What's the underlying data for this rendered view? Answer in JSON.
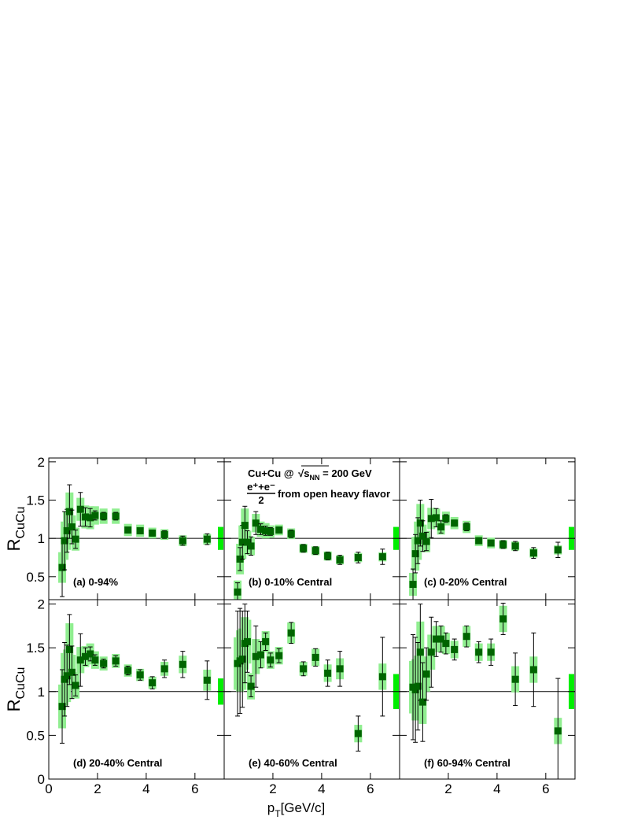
{
  "chart_data": [
    {
      "type": "scatter",
      "label": "(a) 0-94%",
      "y_label": {
        "main": "R",
        "sub": "CuCu"
      },
      "x": [
        0.55,
        0.65,
        0.75,
        0.85,
        0.95,
        1.1,
        1.3,
        1.5,
        1.7,
        1.9,
        2.25,
        2.75,
        3.25,
        3.75,
        4.25,
        4.75,
        5.5,
        6.5
      ],
      "values": [
        0.62,
        0.97,
        1.1,
        1.35,
        1.15,
        0.99,
        1.38,
        1.28,
        1.27,
        1.3,
        1.29,
        1.29,
        1.11,
        1.1,
        1.07,
        1.05,
        0.97,
        0.99
      ],
      "errors": [
        0.38,
        0.38,
        0.28,
        0.35,
        0.22,
        0.12,
        0.22,
        0.12,
        0.12,
        0.06,
        0.05,
        0.05,
        0.04,
        0.04,
        0.04,
        0.05,
        0.06,
        0.07
      ],
      "sys_errors": [
        0.2,
        0.25,
        0.25,
        0.25,
        0.15,
        0.15,
        0.15,
        0.15,
        0.15,
        0.12,
        0.1,
        0.1,
        0.08,
        0.08,
        0.07,
        0.07,
        0.07,
        0.07
      ],
      "norm_error": 0.15,
      "reference_line": 1,
      "color": "#006400",
      "sys_color": "#90ee90",
      "norm_color": "#00ee00",
      "xlim": [
        0,
        7.2
      ],
      "ylim": [
        0.2,
        2.05
      ],
      "xticks": [
        0,
        2,
        4,
        6
      ],
      "yticks": [
        0.5,
        1,
        1.5,
        2
      ]
    },
    {
      "type": "scatter",
      "label": "(b) 0-10% Central",
      "annotation": {
        "system": "Cu+Cu @ ",
        "sqrt": "s",
        "sqrt_sub": "NN",
        "energy": " = 200 GeV",
        "numerator": "e⁺+e⁻",
        "denominator": "2",
        "source": "from open heavy flavor"
      },
      "x": [
        0.55,
        0.65,
        0.75,
        0.85,
        0.95,
        1.1,
        1.3,
        1.5,
        1.7,
        1.9,
        2.25,
        2.75,
        3.25,
        3.75,
        4.25,
        4.75,
        5.5,
        6.5
      ],
      "values": [
        0.3,
        0.73,
        0.95,
        1.17,
        0.95,
        0.9,
        1.2,
        1.12,
        1.1,
        1.09,
        1.11,
        1.06,
        0.87,
        0.84,
        0.77,
        0.72,
        0.75,
        0.76
      ],
      "errors": [
        0.12,
        0.15,
        0.22,
        0.25,
        0.15,
        0.12,
        0.15,
        0.07,
        0.06,
        0.05,
        0.04,
        0.05,
        0.05,
        0.05,
        0.05,
        0.06,
        0.07,
        0.1
      ],
      "sys_errors": [
        0.15,
        0.2,
        0.22,
        0.22,
        0.15,
        0.12,
        0.12,
        0.1,
        0.1,
        0.08,
        0.07,
        0.07,
        0.06,
        0.06,
        0.06,
        0.06,
        0.06,
        0.06
      ],
      "norm_error": 0.15,
      "reference_line": 1,
      "color": "#006400",
      "sys_color": "#90ee90",
      "norm_color": "#00ee00",
      "xlim": [
        0,
        7.2
      ],
      "ylim": [
        0.2,
        2.05
      ],
      "xticks": [
        0,
        2,
        4,
        6
      ],
      "yticks": [
        0.5,
        1,
        1.5,
        2
      ]
    },
    {
      "type": "scatter",
      "label": "(c) 0-20% Central",
      "x": [
        0.55,
        0.65,
        0.75,
        0.85,
        0.95,
        1.1,
        1.3,
        1.5,
        1.7,
        1.9,
        2.25,
        2.75,
        3.25,
        3.75,
        4.25,
        4.75,
        5.5,
        6.5
      ],
      "values": [
        0.4,
        0.8,
        0.97,
        1.2,
        1.03,
        0.96,
        1.26,
        1.27,
        1.15,
        1.26,
        1.2,
        1.15,
        0.97,
        0.94,
        0.92,
        0.9,
        0.81,
        0.85
      ],
      "errors": [
        0.2,
        0.25,
        0.3,
        0.3,
        0.2,
        0.12,
        0.25,
        0.12,
        0.08,
        0.05,
        0.04,
        0.05,
        0.04,
        0.04,
        0.05,
        0.06,
        0.07,
        0.1
      ],
      "sys_errors": [
        0.15,
        0.22,
        0.25,
        0.25,
        0.15,
        0.14,
        0.14,
        0.12,
        0.1,
        0.09,
        0.08,
        0.08,
        0.07,
        0.07,
        0.06,
        0.06,
        0.06,
        0.06
      ],
      "norm_error": 0.15,
      "reference_line": 1,
      "color": "#006400",
      "sys_color": "#90ee90",
      "norm_color": "#00ee00",
      "xlim": [
        0,
        7.2
      ],
      "ylim": [
        0.2,
        2.05
      ],
      "xticks": [
        0,
        2,
        4,
        6
      ],
      "yticks": [
        0.5,
        1,
        1.5,
        2
      ]
    },
    {
      "type": "scatter",
      "label": "(d) 20-40% Central",
      "y_label": {
        "main": "R",
        "sub": "CuCu"
      },
      "x": [
        0.55,
        0.65,
        0.75,
        0.85,
        0.95,
        1.1,
        1.3,
        1.5,
        1.7,
        1.9,
        2.25,
        2.75,
        3.25,
        3.75,
        4.25,
        4.75,
        5.5,
        6.5
      ],
      "values": [
        0.83,
        1.14,
        1.18,
        1.48,
        1.22,
        1.07,
        1.36,
        1.4,
        1.43,
        1.36,
        1.32,
        1.35,
        1.24,
        1.19,
        1.1,
        1.26,
        1.31,
        1.13
      ],
      "errors": [
        0.42,
        0.42,
        0.35,
        0.4,
        0.3,
        0.12,
        0.3,
        0.1,
        0.08,
        0.06,
        0.05,
        0.06,
        0.05,
        0.06,
        0.07,
        0.1,
        0.15,
        0.22
      ],
      "sys_errors": [
        0.25,
        0.3,
        0.3,
        0.3,
        0.2,
        0.15,
        0.15,
        0.12,
        0.12,
        0.1,
        0.08,
        0.08,
        0.07,
        0.07,
        0.07,
        0.08,
        0.1,
        0.12
      ],
      "norm_error": 0.15,
      "reference_line": 1,
      "color": "#006400",
      "sys_color": "#90ee90",
      "norm_color": "#00ee00",
      "xlim": [
        0,
        7.2
      ],
      "ylim": [
        0,
        2.05
      ],
      "xticks": [
        0,
        2,
        4,
        6
      ],
      "yticks": [
        0,
        0.5,
        1,
        1.5,
        2
      ]
    },
    {
      "type": "scatter",
      "label": "(e) 40-60% Central",
      "x_label": {
        "main": "p",
        "sub": "T",
        "rest": "[GeV/c]"
      },
      "x": [
        0.55,
        0.65,
        0.75,
        0.85,
        0.95,
        1.1,
        1.3,
        1.5,
        1.7,
        1.9,
        2.25,
        2.75,
        3.25,
        3.75,
        4.25,
        4.75,
        5.5,
        6.5
      ],
      "values": [
        1.32,
        1.35,
        1.37,
        1.55,
        1.57,
        1.06,
        1.4,
        1.42,
        1.57,
        1.36,
        1.41,
        1.67,
        1.26,
        1.39,
        1.21,
        1.26,
        0.52,
        1.17
      ],
      "errors": [
        0.6,
        0.6,
        0.55,
        0.45,
        0.35,
        0.12,
        0.35,
        0.15,
        0.1,
        0.08,
        0.08,
        0.12,
        0.08,
        0.1,
        0.15,
        0.2,
        0.2,
        0.45
      ],
      "sys_errors": [
        0.3,
        0.35,
        0.35,
        0.3,
        0.25,
        0.15,
        0.2,
        0.15,
        0.12,
        0.1,
        0.1,
        0.12,
        0.08,
        0.1,
        0.1,
        0.12,
        0.1,
        0.15
      ],
      "norm_error": 0.2,
      "reference_line": 1,
      "color": "#006400",
      "sys_color": "#90ee90",
      "norm_color": "#00ee00",
      "xlim": [
        0,
        7.2
      ],
      "ylim": [
        0,
        2.05
      ],
      "xticks": [
        2,
        4,
        6
      ],
      "yticks": [
        0,
        0.5,
        1,
        1.5,
        2
      ]
    },
    {
      "type": "scatter",
      "label": "(f) 60-94% Central",
      "x": [
        0.55,
        0.65,
        0.75,
        0.85,
        0.95,
        1.1,
        1.3,
        1.5,
        1.7,
        1.9,
        2.25,
        2.75,
        3.25,
        3.75,
        4.25,
        4.75,
        5.5,
        6.5
      ],
      "values": [
        1.05,
        1.02,
        1.06,
        1.45,
        0.88,
        1.2,
        1.45,
        1.6,
        1.6,
        1.55,
        1.48,
        1.63,
        1.45,
        1.45,
        1.83,
        1.14,
        1.25,
        0.55
      ],
      "errors": [
        0.6,
        0.6,
        0.5,
        0.55,
        0.45,
        0.3,
        0.4,
        0.2,
        0.15,
        0.12,
        0.12,
        0.12,
        0.12,
        0.15,
        0.18,
        0.3,
        0.42,
        0.6
      ],
      "sys_errors": [
        0.3,
        0.35,
        0.35,
        0.35,
        0.25,
        0.2,
        0.2,
        0.15,
        0.15,
        0.12,
        0.1,
        0.12,
        0.1,
        0.1,
        0.15,
        0.15,
        0.15,
        0.15
      ],
      "norm_error": 0.2,
      "reference_line": 1,
      "color": "#006400",
      "sys_color": "#90ee90",
      "norm_color": "#00ee00",
      "xlim": [
        0,
        7.2
      ],
      "ylim": [
        0,
        2.05
      ],
      "xticks": [
        2,
        4,
        6
      ],
      "yticks": [
        0,
        0.5,
        1,
        1.5,
        2
      ]
    }
  ]
}
